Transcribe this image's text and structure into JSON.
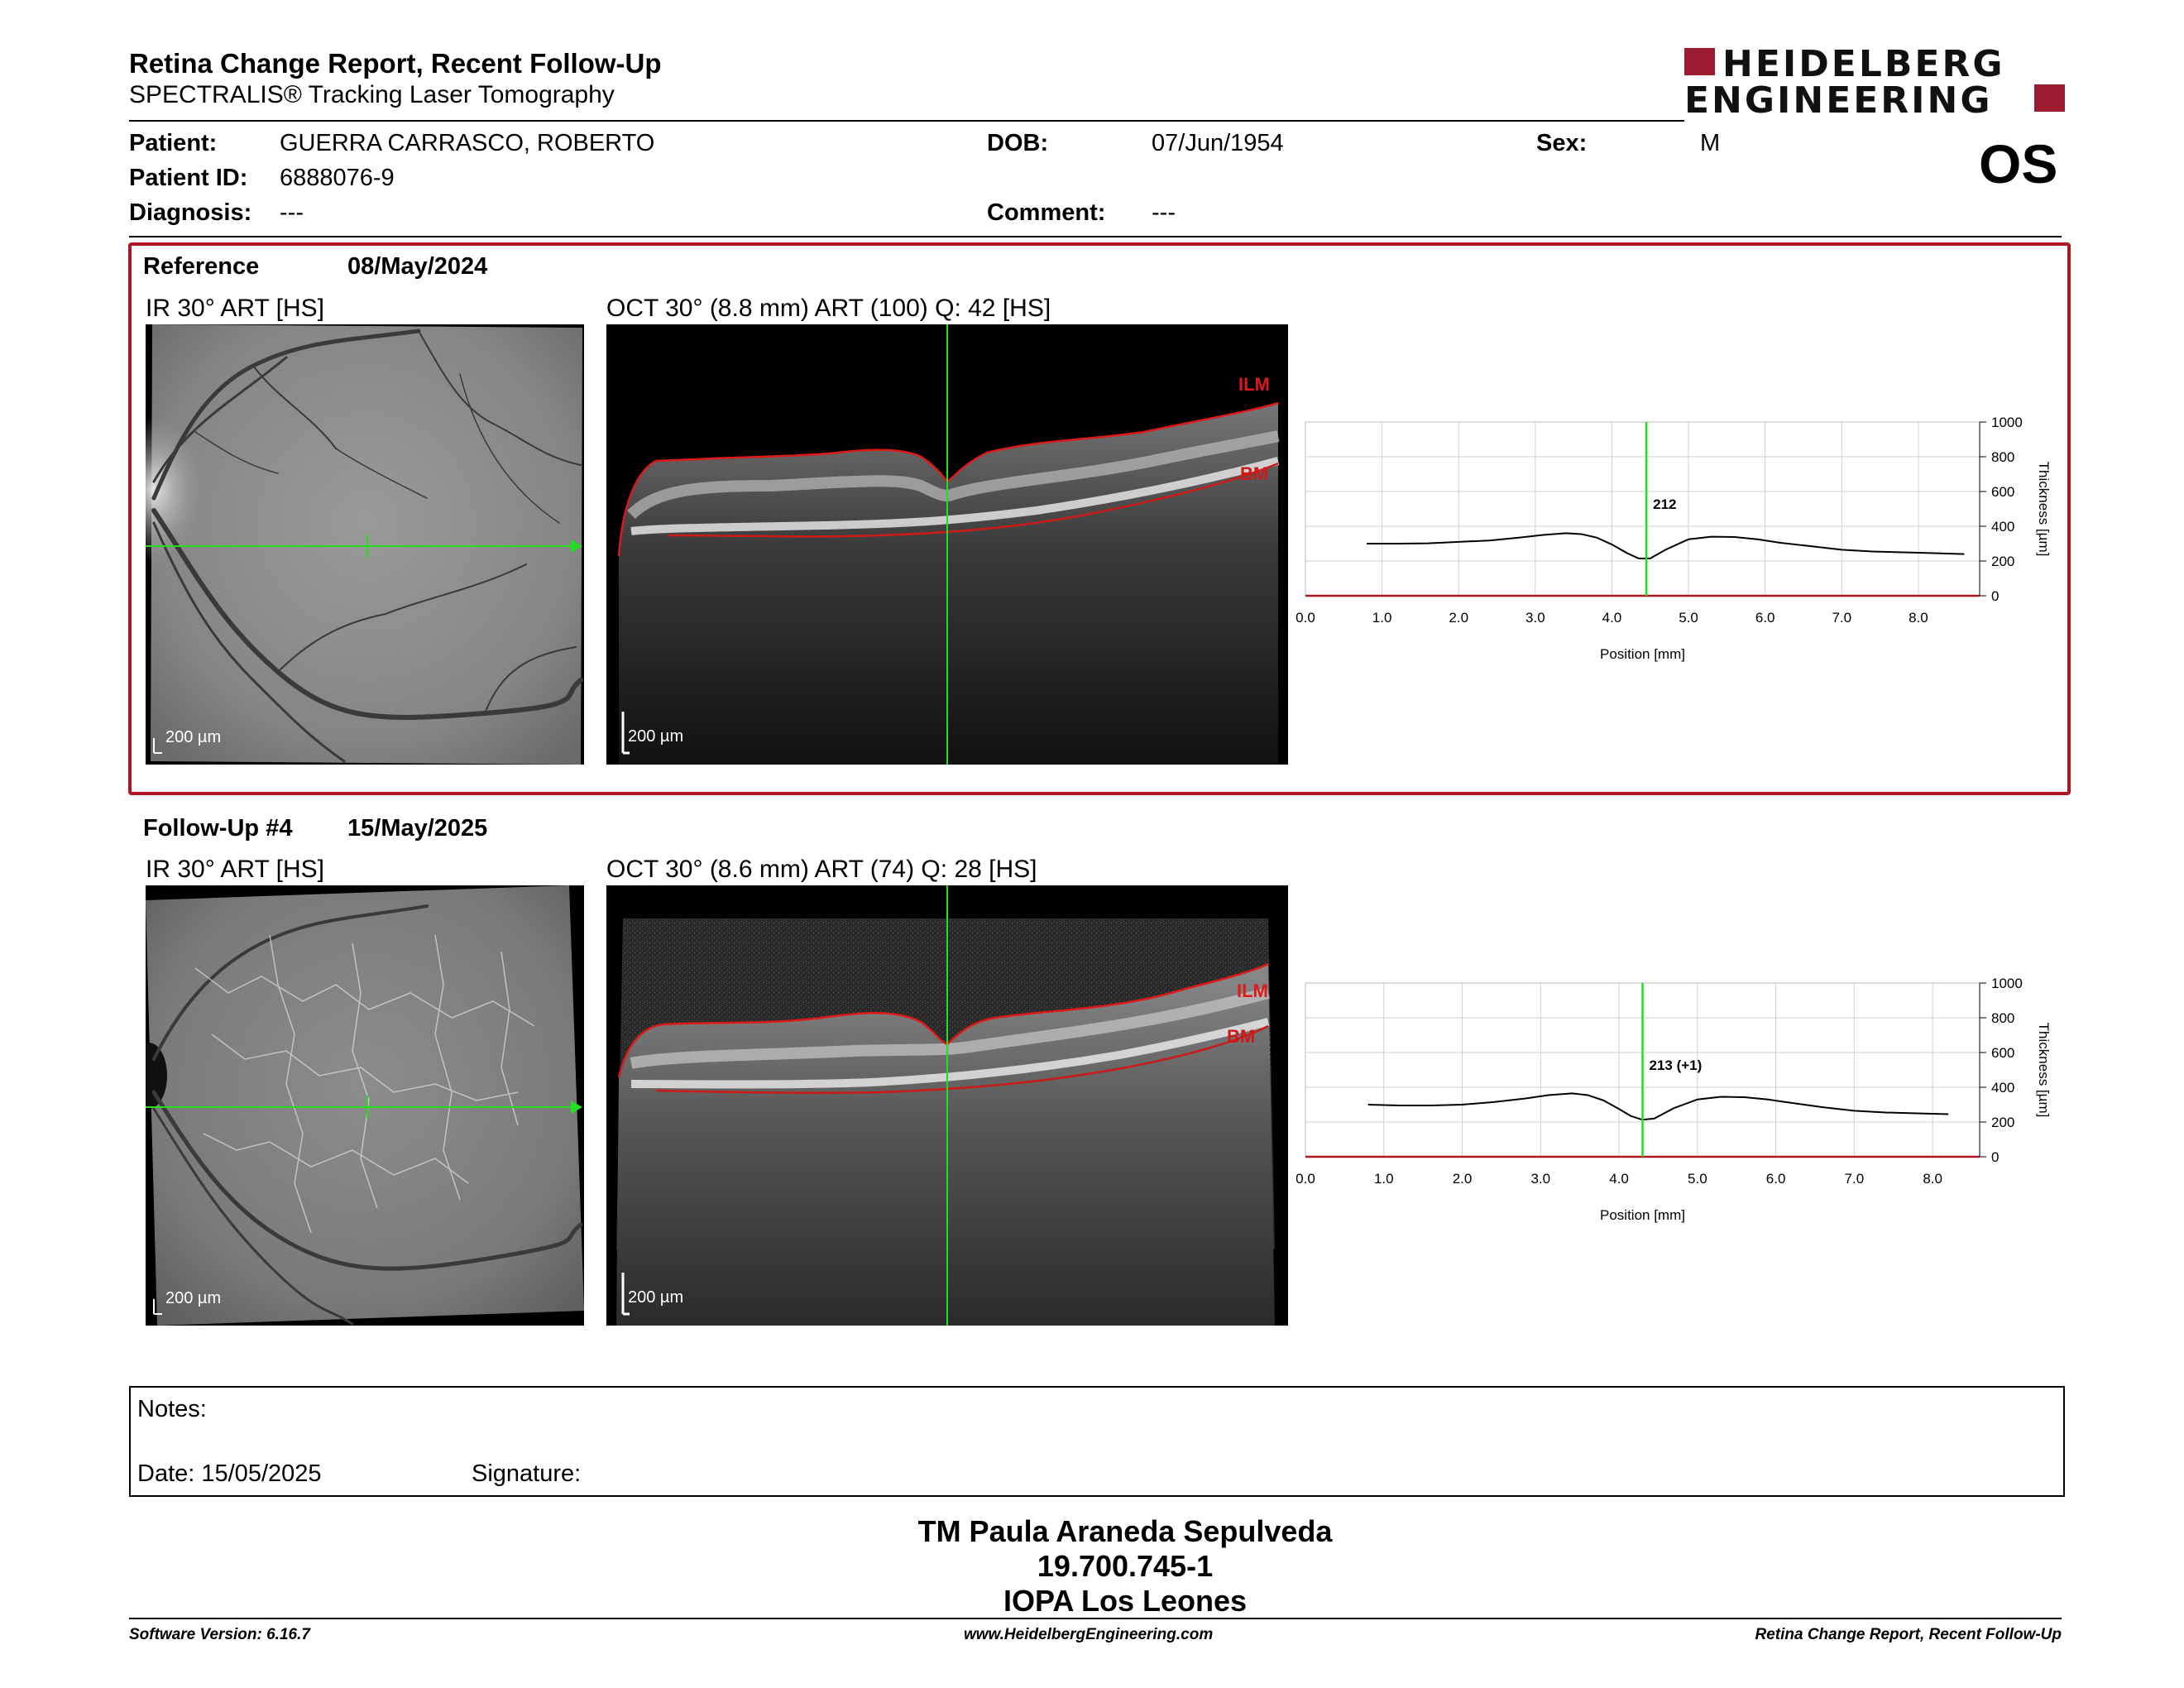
{
  "header": {
    "title": "Retina Change Report, Recent Follow-Up",
    "subtitle": "SPECTRALIS® Tracking Laser Tomography",
    "logo_line1": "HEIDELBERG",
    "logo_line2": "ENGINEERING",
    "eye": "OS"
  },
  "patient": {
    "name_label": "Patient:",
    "name": "GUERRA CARRASCO, ROBERTO",
    "id_label": "Patient ID:",
    "id": "6888076-9",
    "diagnosis_label": "Diagnosis:",
    "diagnosis": "---",
    "dob_label": "DOB:",
    "dob": "07/Jun/1954",
    "comment_label": "Comment:",
    "comment": "---",
    "sex_label": "Sex:",
    "sex": "M"
  },
  "reference": {
    "label": "Reference",
    "date": "08/May/2024",
    "ir_label": "IR 30° ART [HS]",
    "oct_label": "OCT 30° (8.8 mm) ART (100) Q: 42 [HS]",
    "scale": "200 µm",
    "ilm": "ILM",
    "bm": "BM"
  },
  "followup": {
    "label": "Follow-Up #4",
    "date": "15/May/2025",
    "ir_label": "IR 30° ART [HS]",
    "oct_label": "OCT 30° (8.6 mm) ART (74) Q: 28 [HS]",
    "scale": "200 µm",
    "ilm": "ILM",
    "bm": "BM"
  },
  "chart_data": [
    {
      "type": "line",
      "xlabel": "Position [mm]",
      "ylabel": "Thickness [µm]",
      "xlim": [
        0,
        8.8
      ],
      "ylim": [
        0,
        1000
      ],
      "x_ticks": [
        "0.0",
        "1.0",
        "2.0",
        "3.0",
        "4.0",
        "5.0",
        "6.0",
        "7.0",
        "8.0"
      ],
      "y_ticks": [
        "0",
        "200",
        "400",
        "600",
        "800",
        "1000"
      ],
      "cursor_x": 4.45,
      "annotation": "212",
      "x": [
        0.8,
        1.2,
        1.6,
        2.0,
        2.4,
        2.8,
        3.1,
        3.4,
        3.6,
        3.8,
        4.0,
        4.2,
        4.35,
        4.5,
        4.7,
        5.0,
        5.3,
        5.6,
        5.9,
        6.2,
        6.6,
        7.0,
        7.4,
        7.8,
        8.2,
        8.6
      ],
      "y": [
        300,
        300,
        302,
        310,
        318,
        335,
        350,
        360,
        355,
        335,
        295,
        245,
        215,
        215,
        265,
        325,
        340,
        338,
        325,
        305,
        285,
        265,
        255,
        250,
        245,
        240
      ]
    },
    {
      "type": "line",
      "xlabel": "Position [mm]",
      "ylabel": "Thickness [µm]",
      "xlim": [
        0,
        8.6
      ],
      "ylim": [
        0,
        1000
      ],
      "x_ticks": [
        "0.0",
        "1.0",
        "2.0",
        "3.0",
        "4.0",
        "5.0",
        "6.0",
        "7.0",
        "8.0"
      ],
      "y_ticks": [
        "0",
        "200",
        "400",
        "600",
        "800",
        "1000"
      ],
      "cursor_x": 4.3,
      "annotation": "213 (+1)",
      "x": [
        0.8,
        1.2,
        1.6,
        2.0,
        2.4,
        2.8,
        3.1,
        3.4,
        3.6,
        3.8,
        4.0,
        4.15,
        4.3,
        4.45,
        4.7,
        5.0,
        5.3,
        5.6,
        5.9,
        6.2,
        6.6,
        7.0,
        7.4,
        7.8,
        8.2
      ],
      "y": [
        300,
        295,
        295,
        300,
        315,
        335,
        355,
        365,
        355,
        325,
        275,
        235,
        213,
        220,
        280,
        330,
        345,
        343,
        330,
        310,
        285,
        265,
        255,
        250,
        245
      ]
    }
  ],
  "notes": {
    "notes_label": "Notes:",
    "date_label": "Date: 15/05/2025",
    "signature_label": "Signature:"
  },
  "signature": {
    "name": "TM Paula Araneda Sepulveda",
    "rut": "19.700.745-1",
    "org": "IOPA Los Leones"
  },
  "footer": {
    "version": "Software Version: 6.16.7",
    "url": "www.HeidelbergEngineering.com",
    "report": "Retina Change Report, Recent Follow-Up"
  }
}
